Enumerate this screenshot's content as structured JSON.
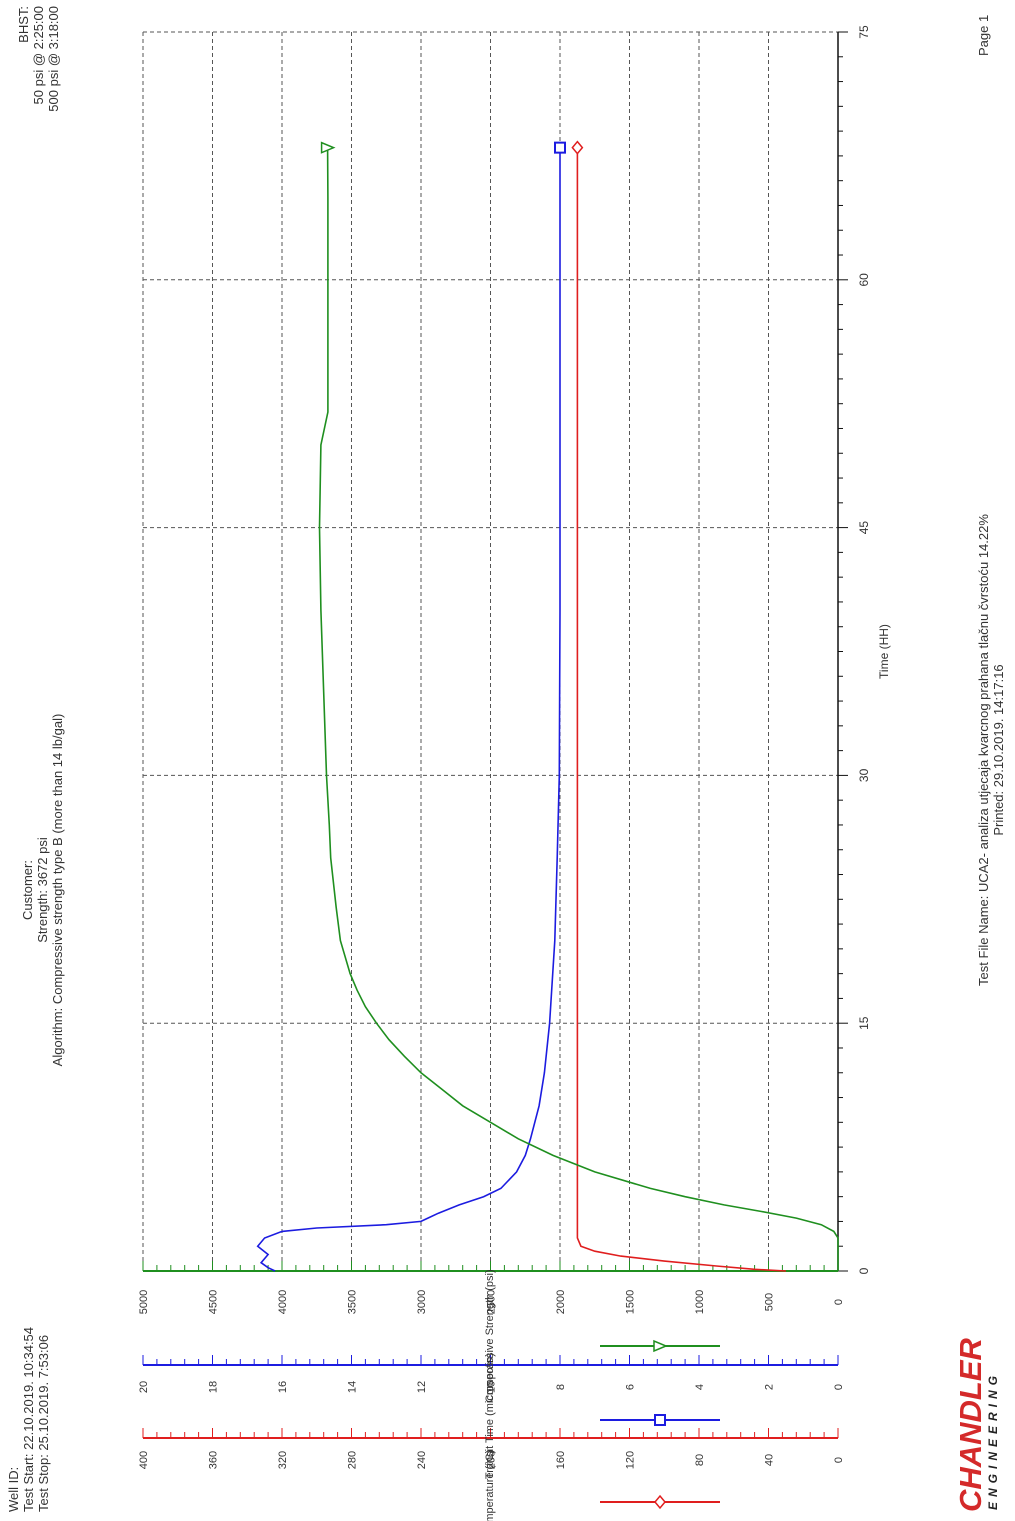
{
  "header": {
    "well_id": "Well ID:",
    "test_start": "Test Start: 22.10.2019. 10:34:54",
    "test_stop": "Test Stop: 25.10.2019. 7:53:06",
    "customer": "Customer:",
    "strength": "Strength: 3672 psi",
    "algorithm": "Algorithm: Compressive strength type B (more than 14 lb/gal)",
    "bhst": "BHST:",
    "psi50": "50 psi @ 2:25:00",
    "psi500": "500 psi @ 3:18:00"
  },
  "footer": {
    "file_name": "Test File Name: UCA2- analiza utjecaja kvarcnog prahana tlačnu čvrstoću 14.22%",
    "printed": "Printed: 29.10.2019. 14:17:16",
    "page": "Page 1"
  },
  "logo": {
    "main": "CHANDLER",
    "sub": "ENGINEERING"
  },
  "colors": {
    "temperature": "#e01e1e",
    "transit": "#1c1ce0",
    "strength": "#1f8f1f",
    "grid": "#555555"
  },
  "chart_data": {
    "type": "line",
    "xlabel": "Time (HH)",
    "x_ticks": [
      0,
      15,
      30,
      45,
      60,
      75
    ],
    "xlim": [
      0,
      75
    ],
    "grid": true,
    "axes": [
      {
        "id": "temperature",
        "label": "Temperature (°C)",
        "ticks": [
          0,
          40,
          80,
          120,
          160,
          200,
          240,
          280,
          320,
          360,
          400
        ],
        "ylim": [
          0,
          400
        ]
      },
      {
        "id": "transit",
        "label": "Transit Time (microsec/in)",
        "ticks": [
          0,
          2,
          4,
          6,
          8,
          10,
          12,
          14,
          16,
          18,
          20
        ],
        "ylim": [
          0,
          20
        ]
      },
      {
        "id": "strength",
        "label": "Compressive Strength (psi)",
        "ticks": [
          0,
          500,
          1000,
          1500,
          2000,
          2500,
          3000,
          3500,
          4000,
          4500,
          5000
        ],
        "ylim": [
          0,
          5000
        ]
      }
    ],
    "series": [
      {
        "name": "Temperature (°C)",
        "axis": "temperature",
        "marker": "diamond",
        "x": [
          0,
          0.1,
          0.3,
          0.6,
          0.9,
          1.2,
          1.5,
          2,
          3,
          5,
          10,
          20,
          30,
          40,
          50,
          60,
          68
        ],
        "y": [
          30,
          48,
          70,
          100,
          125,
          140,
          148,
          150,
          150,
          150,
          150,
          150,
          150,
          150,
          150,
          150,
          150
        ]
      },
      {
        "name": "Transit Time (microsec/in)",
        "axis": "transit",
        "marker": "square",
        "x": [
          0,
          0.2,
          0.5,
          1.0,
          1.5,
          2.0,
          2.4,
          2.6,
          2.8,
          3.0,
          3.2,
          3.5,
          4,
          4.5,
          5,
          6,
          7,
          8,
          10,
          12,
          15,
          20,
          25,
          30,
          40,
          50,
          60,
          68
        ],
        "y": [
          16.2,
          16.4,
          16.6,
          16.4,
          16.7,
          16.5,
          16.0,
          15.0,
          13.0,
          12.0,
          11.8,
          11.5,
          10.9,
          10.2,
          9.7,
          9.25,
          9.0,
          8.85,
          8.6,
          8.45,
          8.3,
          8.15,
          8.08,
          8.02,
          8.0,
          8.0,
          8.0,
          8.0
        ]
      },
      {
        "name": "Compressive Strength (psi)",
        "axis": "strength",
        "marker": "triangle",
        "x": [
          0,
          1,
          2,
          2.4,
          2.8,
          3.2,
          3.6,
          4.0,
          4.5,
          5,
          6,
          7,
          8,
          9,
          10,
          11,
          12,
          13,
          14,
          15,
          16,
          17,
          18,
          20,
          22,
          25,
          27,
          30,
          35,
          40,
          45,
          50,
          52,
          55,
          60,
          65,
          68
        ],
        "y": [
          0,
          0,
          0,
          30,
          120,
          300,
          550,
          820,
          1100,
          1350,
          1750,
          2050,
          2300,
          2500,
          2700,
          2850,
          3000,
          3120,
          3230,
          3320,
          3400,
          3460,
          3510,
          3580,
          3610,
          3650,
          3660,
          3680,
          3700,
          3720,
          3730,
          3720,
          3670,
          3670,
          3670,
          3670,
          3672
        ]
      }
    ]
  }
}
